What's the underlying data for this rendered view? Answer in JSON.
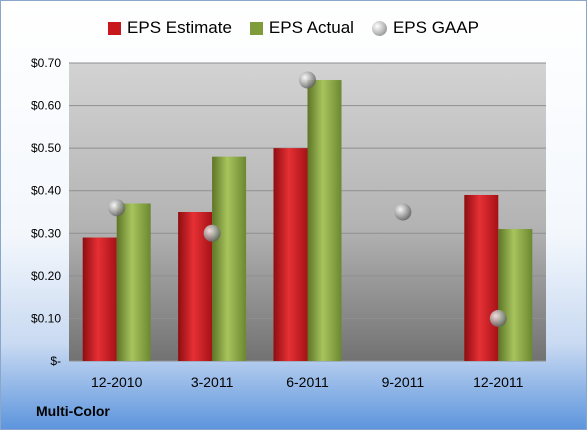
{
  "company": "Multi-Color",
  "legend": {
    "estimate": "EPS Estimate",
    "actual": "EPS Actual",
    "gaap": "EPS GAAP"
  },
  "colors": {
    "estimate": "#c8181c",
    "actual": "#7f9b3a",
    "gaap": "#9a9a9a"
  },
  "chart_data": {
    "type": "bar",
    "categories": [
      "12-2010",
      "3-2011",
      "6-2011",
      "9-2011",
      "12-2011"
    ],
    "series": [
      {
        "name": "EPS Estimate",
        "type": "bar",
        "values": [
          0.29,
          0.35,
          0.5,
          null,
          0.39
        ]
      },
      {
        "name": "EPS Actual",
        "type": "bar",
        "values": [
          0.37,
          0.48,
          0.66,
          null,
          0.31
        ]
      },
      {
        "name": "EPS GAAP",
        "type": "scatter",
        "values": [
          0.36,
          0.3,
          0.66,
          0.35,
          0.1
        ]
      }
    ],
    "yticks": [
      {
        "value": 0,
        "label": "$-"
      },
      {
        "value": 0.1,
        "label": "$0.10"
      },
      {
        "value": 0.2,
        "label": "$0.20"
      },
      {
        "value": 0.3,
        "label": "$0.30"
      },
      {
        "value": 0.4,
        "label": "$0.40"
      },
      {
        "value": 0.5,
        "label": "$0.50"
      },
      {
        "value": 0.6,
        "label": "$0.60"
      },
      {
        "value": 0.7,
        "label": "$0.70"
      }
    ],
    "ylim": [
      0,
      0.7
    ],
    "grid": true,
    "legend_position": "top"
  }
}
